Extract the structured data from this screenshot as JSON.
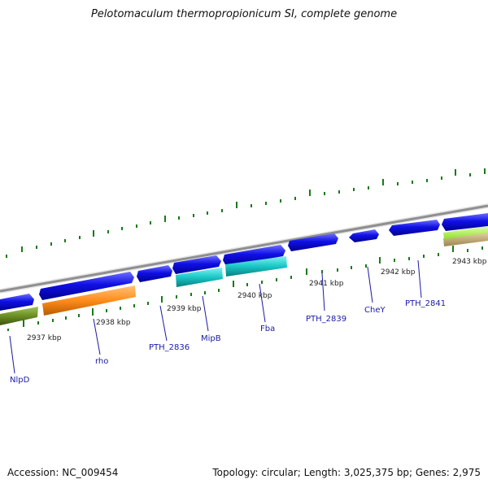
{
  "title": "Pelotomaculum thermopropionicum SI, complete genome",
  "footer": {
    "accession": "Accession: NC_009454",
    "summary": "Topology: circular; Length: 3,025,375 bp; Genes: 2,975"
  },
  "colors": {
    "backbone": "#8f8f8f",
    "gene_forward": "#1010e6",
    "gene_cyan": "#19c6c6",
    "gene_orange": "#ff8c1a",
    "gene_olive": "#6b8e23",
    "gene_lime": "#a6ff33",
    "gene_tan": "#c8b27a",
    "tick": "#1a7a1a",
    "label": "#1a1aa6"
  },
  "kbp_labels": [
    "2937 kbp",
    "2938 kbp",
    "2939 kbp",
    "2940 kbp",
    "2941 kbp",
    "2942 kbp",
    "2943 kbp"
  ],
  "gene_labels": [
    "NlpD",
    "rho",
    "PTH_2836",
    "MipB",
    "Fba",
    "PTH_2839",
    "CheY",
    "PTH_2841"
  ]
}
